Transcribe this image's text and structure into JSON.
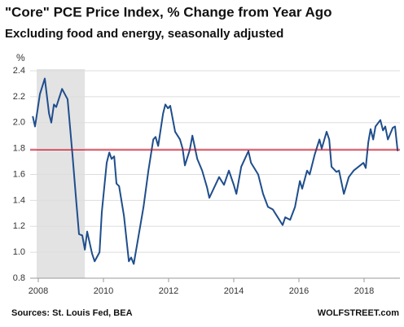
{
  "chart_data": {
    "type": "line",
    "title": "\"Core\" PCE Price Index, % Change from Year Ago",
    "subtitle": "Excluding food and energy, seasonally adjusted",
    "y_label": "%",
    "source": "Sources: St. Louis Fed, BEA",
    "watermark": "WOLFSTREET.com",
    "x": [
      2007.83,
      2007.9,
      2008.05,
      2008.2,
      2008.33,
      2008.4,
      2008.48,
      2008.55,
      2008.73,
      2008.9,
      2009.05,
      2009.15,
      2009.25,
      2009.35,
      2009.43,
      2009.5,
      2009.65,
      2009.73,
      2009.88,
      2009.95,
      2010.1,
      2010.18,
      2010.25,
      2010.33,
      2010.4,
      2010.48,
      2010.63,
      2010.78,
      2010.85,
      2010.93,
      2011.08,
      2011.23,
      2011.38,
      2011.53,
      2011.6,
      2011.68,
      2011.83,
      2011.9,
      2011.98,
      2012.05,
      2012.2,
      2012.35,
      2012.43,
      2012.5,
      2012.65,
      2012.73,
      2012.88,
      2013.03,
      2013.18,
      2013.25,
      2013.4,
      2013.55,
      2013.7,
      2013.85,
      2014.0,
      2014.08,
      2014.23,
      2014.45,
      2014.53,
      2014.75,
      2014.9,
      2015.05,
      2015.2,
      2015.5,
      2015.58,
      2015.73,
      2015.88,
      2016.03,
      2016.1,
      2016.25,
      2016.33,
      2016.48,
      2016.63,
      2016.7,
      2016.85,
      2016.93,
      2017.0,
      2017.15,
      2017.23,
      2017.38,
      2017.53,
      2017.68,
      2017.98,
      2018.05,
      2018.13,
      2018.2,
      2018.28,
      2018.35,
      2018.5,
      2018.58,
      2018.65,
      2018.73,
      2018.88,
      2018.95,
      2019.03
    ],
    "series": [
      {
        "color": "#1f4e8c",
        "values": [
          2.05,
          1.97,
          2.22,
          2.34,
          2.07,
          2.0,
          2.14,
          2.12,
          2.26,
          2.18,
          1.75,
          1.44,
          1.14,
          1.13,
          1.02,
          1.16,
          0.99,
          0.93,
          1.0,
          1.31,
          1.69,
          1.77,
          1.72,
          1.74,
          1.53,
          1.51,
          1.28,
          0.93,
          0.96,
          0.91,
          1.13,
          1.35,
          1.63,
          1.87,
          1.89,
          1.82,
          2.07,
          2.14,
          2.11,
          2.13,
          1.93,
          1.87,
          1.8,
          1.67,
          1.79,
          1.9,
          1.72,
          1.63,
          1.5,
          1.42,
          1.5,
          1.58,
          1.52,
          1.63,
          1.52,
          1.45,
          1.66,
          1.78,
          1.69,
          1.6,
          1.45,
          1.35,
          1.33,
          1.21,
          1.27,
          1.25,
          1.35,
          1.55,
          1.49,
          1.63,
          1.6,
          1.75,
          1.87,
          1.8,
          1.93,
          1.87,
          1.66,
          1.62,
          1.63,
          1.45,
          1.58,
          1.63,
          1.69,
          1.65,
          1.85,
          1.95,
          1.87,
          1.97,
          2.02,
          1.94,
          1.97,
          1.87,
          1.96,
          1.97,
          1.78
        ]
      }
    ],
    "recession": [
      2007.95,
      2009.43
    ],
    "reference_line": {
      "value": 1.79,
      "color": "#d0021b"
    },
    "xlim": [
      2007.75,
      2019.1
    ],
    "xticks": [
      2008,
      2010,
      2012,
      2014,
      2016,
      2018
    ],
    "ylim": [
      0.8,
      2.4
    ],
    "yticks": [
      {
        "value": 0.8,
        "label": "0.8"
      },
      {
        "value": 1.0,
        "label": "1.0"
      },
      1.2,
      1.4,
      1.6,
      1.8,
      {
        "value": 2.0,
        "label": "2.0"
      },
      2.2,
      2.4
    ],
    "grid": true
  }
}
